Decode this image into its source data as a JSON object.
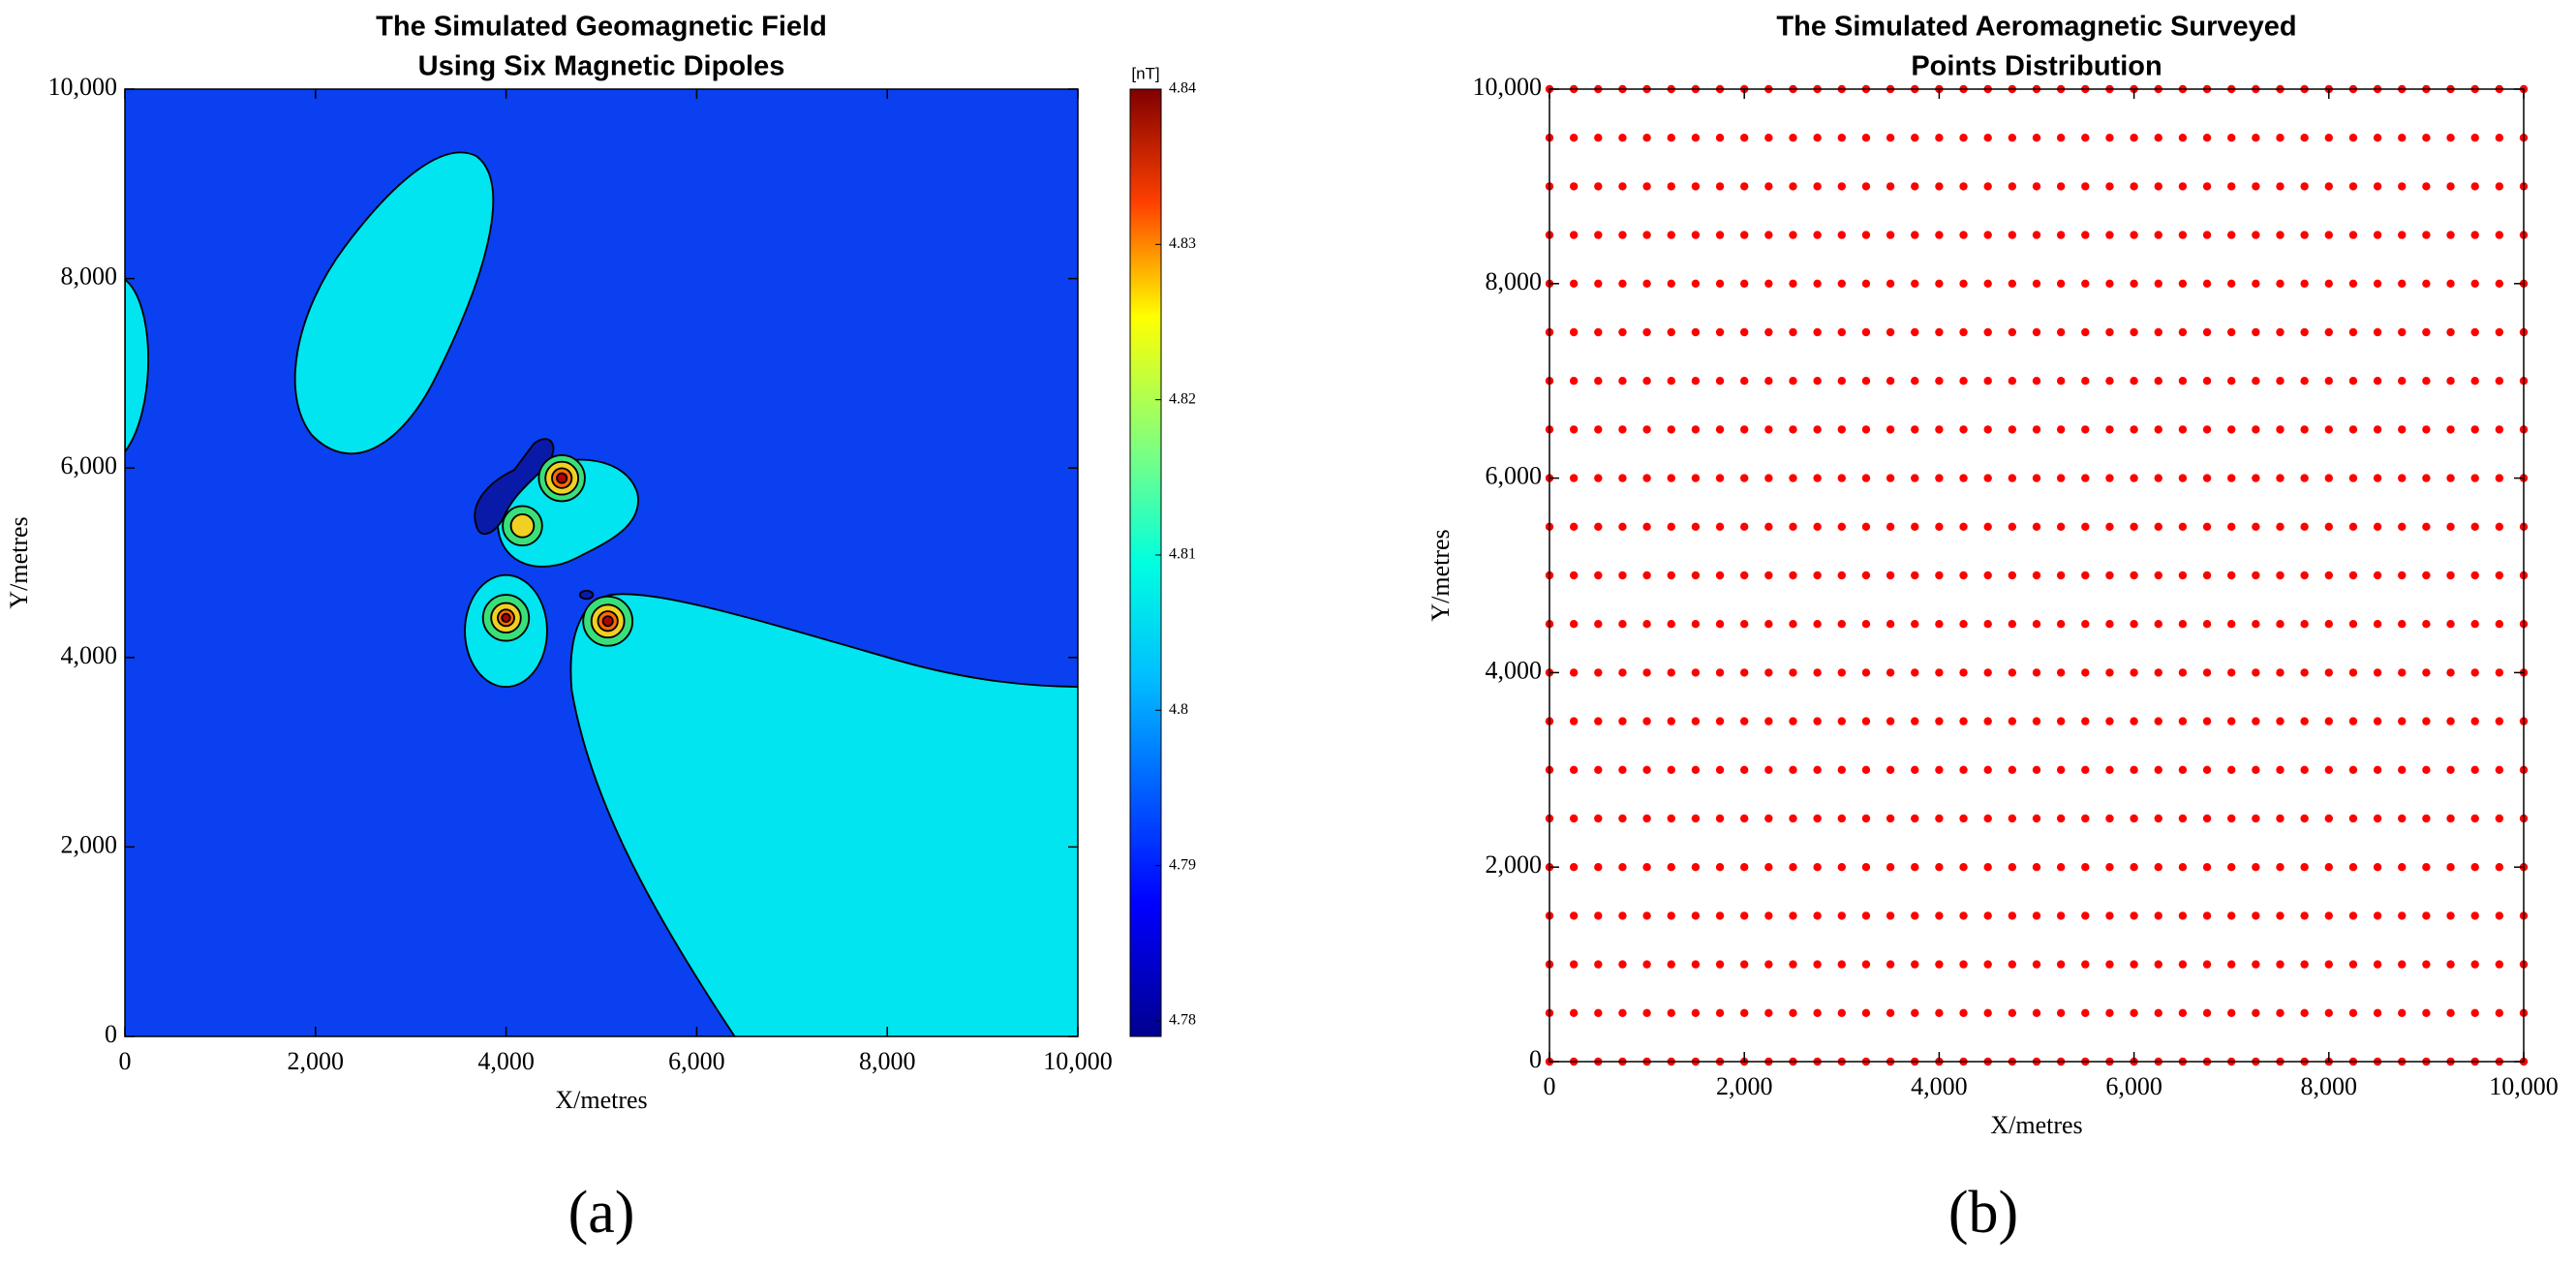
{
  "chart_data": [
    {
      "type": "contour",
      "title": [
        "The Simulated Geomagnetic Field",
        "Using Six Magnetic Dipoles"
      ],
      "x_label": "X/metres",
      "y_label": "Y/metres",
      "xlim": [
        0,
        10000
      ],
      "ylim": [
        0,
        10000
      ],
      "xticks": [
        0,
        {
          "value": 2000,
          "label": "2,000"
        },
        {
          "value": 4000,
          "label": "4,000"
        },
        {
          "value": 6000,
          "label": "6,000"
        },
        {
          "value": 8000,
          "label": "8,000"
        },
        {
          "value": 10000,
          "label": "10,000"
        }
      ],
      "yticks": [
        0,
        {
          "value": 2000,
          "label": "2,000"
        },
        {
          "value": 4000,
          "label": "4,000"
        },
        {
          "value": 6000,
          "label": "6,000"
        },
        {
          "value": 8000,
          "label": "8,000"
        },
        {
          "value": 10000,
          "label": "10,000"
        }
      ],
      "colorbar": {
        "label": "[nT]",
        "lim": [
          4.779,
          4.84
        ],
        "ticks": [
          4.78,
          4.79,
          4.8,
          4.81,
          4.82,
          4.83,
          4.84
        ]
      },
      "caption": "(a)"
    },
    {
      "type": "scatter",
      "title": [
        "The Simulated Aeromagnetic Surveyed",
        "Points Distribution"
      ],
      "x_label": "X/metres",
      "y_label": "Y/metres",
      "xlim": [
        0,
        10000
      ],
      "ylim": [
        0,
        10000
      ],
      "xticks": [
        0,
        {
          "value": 2000,
          "label": "2,000"
        },
        {
          "value": 4000,
          "label": "4,000"
        },
        {
          "value": 6000,
          "label": "6,000"
        },
        {
          "value": 8000,
          "label": "8,000"
        },
        {
          "value": 10000,
          "label": "10,000"
        }
      ],
      "yticks": [
        0,
        {
          "value": 2000,
          "label": "2,000"
        },
        {
          "value": 4000,
          "label": "4,000"
        },
        {
          "value": 6000,
          "label": "6,000"
        },
        {
          "value": 8000,
          "label": "8,000"
        },
        {
          "value": 10000,
          "label": "10,000"
        }
      ],
      "color": "#ff0000",
      "x": [
        0,
        250,
        500,
        750,
        1000,
        1250,
        1500,
        1750,
        2000,
        2250,
        2500,
        2750,
        3000,
        3250,
        3500,
        3750,
        4000,
        4250,
        4500,
        4750,
        5000,
        5250,
        5500,
        5750,
        6000,
        6250,
        6500,
        6750,
        7000,
        7250,
        7500,
        7750,
        8000,
        8250,
        8500,
        8750,
        9000,
        9250,
        9500,
        9750,
        10000
      ],
      "series": [
        {
          "values": [
            0,
            0,
            0,
            0,
            0,
            0,
            0,
            0,
            0,
            0,
            0,
            0,
            0,
            0,
            0,
            0,
            0,
            0,
            0,
            0,
            0,
            0,
            0,
            0,
            0,
            0,
            0,
            0,
            0,
            0,
            0,
            0,
            0,
            0,
            0,
            0,
            0,
            0,
            0,
            0,
            0
          ]
        },
        {
          "values": [
            500,
            500,
            500,
            500,
            500,
            500,
            500,
            500,
            500,
            500,
            500,
            500,
            500,
            500,
            500,
            500,
            500,
            500,
            500,
            500,
            500,
            500,
            500,
            500,
            500,
            500,
            500,
            500,
            500,
            500,
            500,
            500,
            500,
            500,
            500,
            500,
            500,
            500,
            500,
            500,
            500
          ]
        },
        {
          "values": [
            1000,
            1000,
            1000,
            1000,
            1000,
            1000,
            1000,
            1000,
            1000,
            1000,
            1000,
            1000,
            1000,
            1000,
            1000,
            1000,
            1000,
            1000,
            1000,
            1000,
            1000,
            1000,
            1000,
            1000,
            1000,
            1000,
            1000,
            1000,
            1000,
            1000,
            1000,
            1000,
            1000,
            1000,
            1000,
            1000,
            1000,
            1000,
            1000,
            1000,
            1000
          ]
        },
        {
          "values": [
            1500,
            1500,
            1500,
            1500,
            1500,
            1500,
            1500,
            1500,
            1500,
            1500,
            1500,
            1500,
            1500,
            1500,
            1500,
            1500,
            1500,
            1500,
            1500,
            1500,
            1500,
            1500,
            1500,
            1500,
            1500,
            1500,
            1500,
            1500,
            1500,
            1500,
            1500,
            1500,
            1500,
            1500,
            1500,
            1500,
            1500,
            1500,
            1500,
            1500,
            1500
          ]
        },
        {
          "values": [
            2000,
            2000,
            2000,
            2000,
            2000,
            2000,
            2000,
            2000,
            2000,
            2000,
            2000,
            2000,
            2000,
            2000,
            2000,
            2000,
            2000,
            2000,
            2000,
            2000,
            2000,
            2000,
            2000,
            2000,
            2000,
            2000,
            2000,
            2000,
            2000,
            2000,
            2000,
            2000,
            2000,
            2000,
            2000,
            2000,
            2000,
            2000,
            2000,
            2000,
            2000
          ]
        },
        {
          "values": [
            2500,
            2500,
            2500,
            2500,
            2500,
            2500,
            2500,
            2500,
            2500,
            2500,
            2500,
            2500,
            2500,
            2500,
            2500,
            2500,
            2500,
            2500,
            2500,
            2500,
            2500,
            2500,
            2500,
            2500,
            2500,
            2500,
            2500,
            2500,
            2500,
            2500,
            2500,
            2500,
            2500,
            2500,
            2500,
            2500,
            2500,
            2500,
            2500,
            2500,
            2500
          ]
        },
        {
          "values": [
            3000,
            3000,
            3000,
            3000,
            3000,
            3000,
            3000,
            3000,
            3000,
            3000,
            3000,
            3000,
            3000,
            3000,
            3000,
            3000,
            3000,
            3000,
            3000,
            3000,
            3000,
            3000,
            3000,
            3000,
            3000,
            3000,
            3000,
            3000,
            3000,
            3000,
            3000,
            3000,
            3000,
            3000,
            3000,
            3000,
            3000,
            3000,
            3000,
            3000,
            3000
          ]
        },
        {
          "values": [
            3500,
            3500,
            3500,
            3500,
            3500,
            3500,
            3500,
            3500,
            3500,
            3500,
            3500,
            3500,
            3500,
            3500,
            3500,
            3500,
            3500,
            3500,
            3500,
            3500,
            3500,
            3500,
            3500,
            3500,
            3500,
            3500,
            3500,
            3500,
            3500,
            3500,
            3500,
            3500,
            3500,
            3500,
            3500,
            3500,
            3500,
            3500,
            3500,
            3500,
            3500
          ]
        },
        {
          "values": [
            4000,
            4000,
            4000,
            4000,
            4000,
            4000,
            4000,
            4000,
            4000,
            4000,
            4000,
            4000,
            4000,
            4000,
            4000,
            4000,
            4000,
            4000,
            4000,
            4000,
            4000,
            4000,
            4000,
            4000,
            4000,
            4000,
            4000,
            4000,
            4000,
            4000,
            4000,
            4000,
            4000,
            4000,
            4000,
            4000,
            4000,
            4000,
            4000,
            4000,
            4000
          ]
        },
        {
          "values": [
            4500,
            4500,
            4500,
            4500,
            4500,
            4500,
            4500,
            4500,
            4500,
            4500,
            4500,
            4500,
            4500,
            4500,
            4500,
            4500,
            4500,
            4500,
            4500,
            4500,
            4500,
            4500,
            4500,
            4500,
            4500,
            4500,
            4500,
            4500,
            4500,
            4500,
            4500,
            4500,
            4500,
            4500,
            4500,
            4500,
            4500,
            4500,
            4500,
            4500,
            4500
          ]
        },
        {
          "values": [
            5000,
            5000,
            5000,
            5000,
            5000,
            5000,
            5000,
            5000,
            5000,
            5000,
            5000,
            5000,
            5000,
            5000,
            5000,
            5000,
            5000,
            5000,
            5000,
            5000,
            5000,
            5000,
            5000,
            5000,
            5000,
            5000,
            5000,
            5000,
            5000,
            5000,
            5000,
            5000,
            5000,
            5000,
            5000,
            5000,
            5000,
            5000,
            5000,
            5000,
            5000
          ]
        },
        {
          "values": [
            5500,
            5500,
            5500,
            5500,
            5500,
            5500,
            5500,
            5500,
            5500,
            5500,
            5500,
            5500,
            5500,
            5500,
            5500,
            5500,
            5500,
            5500,
            5500,
            5500,
            5500,
            5500,
            5500,
            5500,
            5500,
            5500,
            5500,
            5500,
            5500,
            5500,
            5500,
            5500,
            5500,
            5500,
            5500,
            5500,
            5500,
            5500,
            5500,
            5500,
            5500
          ]
        },
        {
          "values": [
            6000,
            6000,
            6000,
            6000,
            6000,
            6000,
            6000,
            6000,
            6000,
            6000,
            6000,
            6000,
            6000,
            6000,
            6000,
            6000,
            6000,
            6000,
            6000,
            6000,
            6000,
            6000,
            6000,
            6000,
            6000,
            6000,
            6000,
            6000,
            6000,
            6000,
            6000,
            6000,
            6000,
            6000,
            6000,
            6000,
            6000,
            6000,
            6000,
            6000,
            6000
          ]
        },
        {
          "values": [
            6500,
            6500,
            6500,
            6500,
            6500,
            6500,
            6500,
            6500,
            6500,
            6500,
            6500,
            6500,
            6500,
            6500,
            6500,
            6500,
            6500,
            6500,
            6500,
            6500,
            6500,
            6500,
            6500,
            6500,
            6500,
            6500,
            6500,
            6500,
            6500,
            6500,
            6500,
            6500,
            6500,
            6500,
            6500,
            6500,
            6500,
            6500,
            6500,
            6500,
            6500
          ]
        },
        {
          "values": [
            7000,
            7000,
            7000,
            7000,
            7000,
            7000,
            7000,
            7000,
            7000,
            7000,
            7000,
            7000,
            7000,
            7000,
            7000,
            7000,
            7000,
            7000,
            7000,
            7000,
            7000,
            7000,
            7000,
            7000,
            7000,
            7000,
            7000,
            7000,
            7000,
            7000,
            7000,
            7000,
            7000,
            7000,
            7000,
            7000,
            7000,
            7000,
            7000,
            7000,
            7000
          ]
        },
        {
          "values": [
            7500,
            7500,
            7500,
            7500,
            7500,
            7500,
            7500,
            7500,
            7500,
            7500,
            7500,
            7500,
            7500,
            7500,
            7500,
            7500,
            7500,
            7500,
            7500,
            7500,
            7500,
            7500,
            7500,
            7500,
            7500,
            7500,
            7500,
            7500,
            7500,
            7500,
            7500,
            7500,
            7500,
            7500,
            7500,
            7500,
            7500,
            7500,
            7500,
            7500,
            7500
          ]
        },
        {
          "values": [
            8000,
            8000,
            8000,
            8000,
            8000,
            8000,
            8000,
            8000,
            8000,
            8000,
            8000,
            8000,
            8000,
            8000,
            8000,
            8000,
            8000,
            8000,
            8000,
            8000,
            8000,
            8000,
            8000,
            8000,
            8000,
            8000,
            8000,
            8000,
            8000,
            8000,
            8000,
            8000,
            8000,
            8000,
            8000,
            8000,
            8000,
            8000,
            8000,
            8000,
            8000
          ]
        },
        {
          "values": [
            8500,
            8500,
            8500,
            8500,
            8500,
            8500,
            8500,
            8500,
            8500,
            8500,
            8500,
            8500,
            8500,
            8500,
            8500,
            8500,
            8500,
            8500,
            8500,
            8500,
            8500,
            8500,
            8500,
            8500,
            8500,
            8500,
            8500,
            8500,
            8500,
            8500,
            8500,
            8500,
            8500,
            8500,
            8500,
            8500,
            8500,
            8500,
            8500,
            8500,
            8500
          ]
        },
        {
          "values": [
            9000,
            9000,
            9000,
            9000,
            9000,
            9000,
            9000,
            9000,
            9000,
            9000,
            9000,
            9000,
            9000,
            9000,
            9000,
            9000,
            9000,
            9000,
            9000,
            9000,
            9000,
            9000,
            9000,
            9000,
            9000,
            9000,
            9000,
            9000,
            9000,
            9000,
            9000,
            9000,
            9000,
            9000,
            9000,
            9000,
            9000,
            9000,
            9000,
            9000,
            9000
          ]
        },
        {
          "values": [
            9500,
            9500,
            9500,
            9500,
            9500,
            9500,
            9500,
            9500,
            9500,
            9500,
            9500,
            9500,
            9500,
            9500,
            9500,
            9500,
            9500,
            9500,
            9500,
            9500,
            9500,
            9500,
            9500,
            9500,
            9500,
            9500,
            9500,
            9500,
            9500,
            9500,
            9500,
            9500,
            9500,
            9500,
            9500,
            9500,
            9500,
            9500,
            9500,
            9500,
            9500
          ]
        },
        {
          "values": [
            10000,
            10000,
            10000,
            10000,
            10000,
            10000,
            10000,
            10000,
            10000,
            10000,
            10000,
            10000,
            10000,
            10000,
            10000,
            10000,
            10000,
            10000,
            10000,
            10000,
            10000,
            10000,
            10000,
            10000,
            10000,
            10000,
            10000,
            10000,
            10000,
            10000,
            10000,
            10000,
            10000,
            10000,
            10000,
            10000,
            10000,
            10000,
            10000,
            10000,
            10000
          ]
        }
      ],
      "caption": "(b)"
    }
  ]
}
